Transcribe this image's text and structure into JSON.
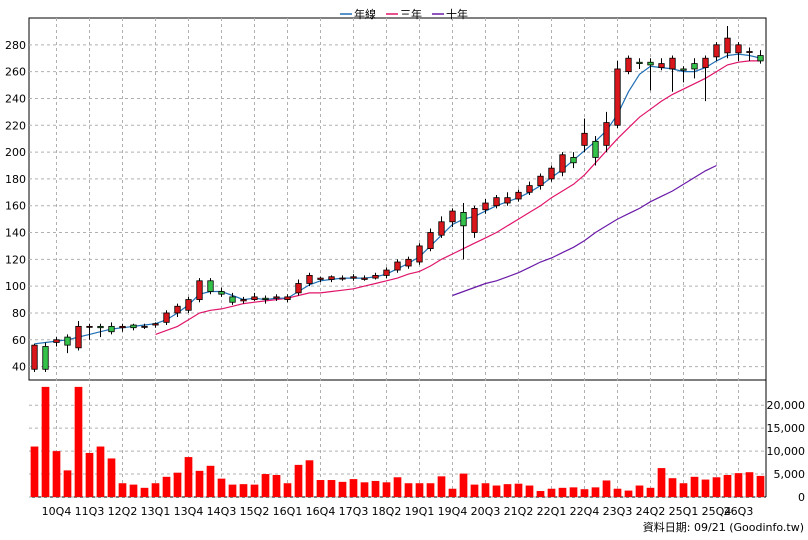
{
  "chart_data": {
    "type": "candlestick",
    "legend": [
      {
        "label": "年線",
        "color": "#1f6fb5"
      },
      {
        "label": "三年",
        "color": "#e0156b"
      },
      {
        "label": "十年",
        "color": "#6a1aa8"
      }
    ],
    "price_ticks": [
      "40",
      "60",
      "80",
      "100",
      "120",
      "140",
      "160",
      "180",
      "200",
      "220",
      "240",
      "260",
      "280"
    ],
    "price_ylim": [
      30,
      300
    ],
    "volume_ticks": [
      "0",
      "5,000",
      "10,000",
      "15,000",
      "20,000"
    ],
    "volume_ylim": [
      0,
      25500
    ],
    "x_labels": [
      {
        "i": 2,
        "label": "10Q4"
      },
      {
        "i": 5,
        "label": "11Q3"
      },
      {
        "i": 8,
        "label": "12Q2"
      },
      {
        "i": 11,
        "label": "13Q1"
      },
      {
        "i": 14,
        "label": "13Q4"
      },
      {
        "i": 17,
        "label": "14Q3"
      },
      {
        "i": 20,
        "label": "15Q2"
      },
      {
        "i": 23,
        "label": "16Q1"
      },
      {
        "i": 26,
        "label": "16Q4"
      },
      {
        "i": 29,
        "label": "17Q3"
      },
      {
        "i": 32,
        "label": "18Q2"
      },
      {
        "i": 35,
        "label": "19Q1"
      },
      {
        "i": 38,
        "label": "19Q4"
      },
      {
        "i": 41,
        "label": "20Q3"
      },
      {
        "i": 44,
        "label": "21Q2"
      },
      {
        "i": 47,
        "label": "22Q1"
      },
      {
        "i": 50,
        "label": "22Q4"
      },
      {
        "i": 53,
        "label": "23Q3"
      },
      {
        "i": 56,
        "label": "24Q2"
      },
      {
        "i": 59,
        "label": "25Q1"
      },
      {
        "i": 62,
        "label": "25Q4"
      },
      {
        "i": 64,
        "label": "26Q3"
      }
    ],
    "source_text": "資料日期: 09/21  (Goodinfo.tw)",
    "candles": [
      [
        38,
        56,
        36,
        57
      ],
      [
        55,
        38,
        36,
        58
      ],
      [
        58,
        60,
        55,
        62
      ],
      [
        62,
        56,
        50,
        64
      ],
      [
        54,
        70,
        52,
        74
      ],
      [
        70,
        70,
        60,
        72
      ],
      [
        70,
        69,
        62,
        72
      ],
      [
        70,
        66,
        64,
        73
      ],
      [
        69,
        70,
        66,
        72
      ],
      [
        71,
        69,
        67,
        72
      ],
      [
        70,
        70,
        68,
        72
      ],
      [
        71,
        72,
        69,
        73
      ],
      [
        73,
        80,
        71,
        82
      ],
      [
        80,
        85,
        77,
        87
      ],
      [
        82,
        90,
        80,
        92
      ],
      [
        90,
        104,
        88,
        106
      ],
      [
        104,
        96,
        94,
        106
      ],
      [
        96,
        94,
        92,
        99
      ],
      [
        92,
        88,
        86,
        95
      ],
      [
        89,
        90,
        87,
        92
      ],
      [
        90,
        92,
        89,
        95
      ],
      [
        91,
        90,
        87,
        93
      ],
      [
        91,
        92,
        89,
        94
      ],
      [
        90,
        92,
        88,
        94
      ],
      [
        95,
        102,
        93,
        105
      ],
      [
        102,
        108,
        100,
        110
      ],
      [
        105,
        106,
        103,
        107
      ],
      [
        105,
        107,
        103,
        108
      ],
      [
        106,
        106,
        104,
        108
      ],
      [
        106,
        107,
        104,
        109
      ],
      [
        105,
        106,
        104,
        108
      ],
      [
        106,
        108,
        105,
        110
      ],
      [
        108,
        112,
        106,
        114
      ],
      [
        112,
        118,
        110,
        120
      ],
      [
        115,
        120,
        113,
        122
      ],
      [
        118,
        130,
        116,
        132
      ],
      [
        128,
        140,
        126,
        143
      ],
      [
        138,
        148,
        136,
        152
      ],
      [
        148,
        156,
        144,
        158
      ],
      [
        155,
        145,
        120,
        162
      ],
      [
        140,
        158,
        136,
        160
      ],
      [
        157,
        162,
        154,
        165
      ],
      [
        160,
        166,
        158,
        168
      ],
      [
        162,
        166,
        160,
        170
      ],
      [
        165,
        170,
        163,
        172
      ],
      [
        170,
        175,
        168,
        178
      ],
      [
        175,
        182,
        172,
        184
      ],
      [
        180,
        188,
        178,
        190
      ],
      [
        185,
        198,
        182,
        200
      ],
      [
        196,
        192,
        188,
        200
      ],
      [
        205,
        214,
        200,
        225
      ],
      [
        208,
        196,
        190,
        212
      ],
      [
        205,
        222,
        200,
        230
      ],
      [
        220,
        262,
        218,
        268
      ],
      [
        260,
        270,
        258,
        272
      ],
      [
        267,
        266,
        262,
        270
      ],
      [
        267,
        265,
        246,
        270
      ],
      [
        263,
        266,
        261,
        270
      ],
      [
        262,
        270,
        245,
        272
      ],
      [
        262,
        261,
        252,
        264
      ],
      [
        266,
        262,
        255,
        270
      ],
      [
        263,
        270,
        238,
        272
      ],
      [
        271,
        280,
        268,
        282
      ],
      [
        274,
        285,
        270,
        294
      ],
      [
        274,
        280,
        268,
        282
      ],
      [
        275,
        275,
        268,
        278
      ],
      [
        272,
        268,
        266,
        276
      ]
    ],
    "volume": [
      11000,
      24000,
      10000,
      5800,
      24000,
      9600,
      11000,
      8400,
      3000,
      2700,
      2000,
      3000,
      4400,
      5300,
      8700,
      5700,
      6800,
      4000,
      2700,
      2800,
      2700,
      5000,
      4800,
      3000,
      7000,
      8000,
      3700,
      3700,
      3300,
      3900,
      3200,
      3500,
      3200,
      4300,
      3000,
      3000,
      3000,
      4500,
      1800,
      5100,
      2700,
      3000,
      2500,
      2800,
      2900,
      2500,
      1300,
      1800,
      2000,
      2100,
      1700,
      2100,
      3600,
      1800,
      1400,
      2500,
      2000,
      6300,
      4100,
      3000,
      4400,
      3800,
      4300,
      4800,
      5200,
      5400,
      4600
    ],
    "ma_year": [
      null,
      null,
      null,
      null,
      null,
      null,
      null,
      null,
      null,
      null,
      null,
      null,
      null,
      null,
      null,
      null,
      null,
      null,
      null,
      null,
      null,
      null,
      null,
      null,
      null,
      null,
      null,
      null,
      null,
      null,
      null,
      null,
      null,
      null,
      null,
      null,
      null,
      null,
      null,
      null,
      null,
      null,
      null,
      null,
      null,
      null,
      null,
      null,
      null,
      null,
      null,
      null,
      null,
      null,
      null,
      null,
      null,
      null,
      null,
      null,
      null,
      null,
      null,
      null,
      null,
      null,
      null
    ],
    "ma_year_pts": [
      [
        0,
        57
      ],
      [
        1,
        58
      ],
      [
        2,
        59
      ],
      [
        3,
        60
      ],
      [
        4,
        62
      ],
      [
        5,
        64
      ],
      [
        6,
        66
      ],
      [
        7,
        68
      ],
      [
        8,
        69
      ],
      [
        9,
        70
      ],
      [
        10,
        71
      ],
      [
        11,
        72
      ],
      [
        12,
        75
      ],
      [
        13,
        80
      ],
      [
        14,
        86
      ],
      [
        15,
        94
      ],
      [
        16,
        96
      ],
      [
        17,
        96
      ],
      [
        18,
        93
      ],
      [
        19,
        90
      ],
      [
        20,
        91
      ],
      [
        21,
        90
      ],
      [
        22,
        91
      ],
      [
        23,
        91
      ],
      [
        24,
        96
      ],
      [
        25,
        101
      ],
      [
        26,
        104
      ],
      [
        27,
        105
      ],
      [
        28,
        106
      ],
      [
        29,
        106
      ],
      [
        30,
        106
      ],
      [
        31,
        107
      ],
      [
        32,
        109
      ],
      [
        33,
        113
      ],
      [
        34,
        117
      ],
      [
        35,
        122
      ],
      [
        36,
        130
      ],
      [
        37,
        138
      ],
      [
        38,
        146
      ],
      [
        39,
        150
      ],
      [
        40,
        152
      ],
      [
        41,
        156
      ],
      [
        42,
        160
      ],
      [
        43,
        163
      ],
      [
        44,
        166
      ],
      [
        45,
        170
      ],
      [
        46,
        175
      ],
      [
        47,
        181
      ],
      [
        48,
        187
      ],
      [
        49,
        194
      ],
      [
        50,
        201
      ],
      [
        51,
        208
      ],
      [
        52,
        216
      ],
      [
        53,
        228
      ],
      [
        54,
        245
      ],
      [
        55,
        258
      ],
      [
        56,
        264
      ],
      [
        57,
        263
      ],
      [
        58,
        262
      ],
      [
        59,
        260
      ],
      [
        60,
        260
      ],
      [
        61,
        263
      ],
      [
        62,
        268
      ],
      [
        63,
        272
      ],
      [
        64,
        273
      ],
      [
        65,
        272
      ],
      [
        66,
        270
      ]
    ],
    "ma_3y_pts": [
      [
        11,
        64
      ],
      [
        12,
        67
      ],
      [
        13,
        70
      ],
      [
        14,
        75
      ],
      [
        15,
        80
      ],
      [
        16,
        82
      ],
      [
        17,
        83
      ],
      [
        18,
        85
      ],
      [
        19,
        87
      ],
      [
        20,
        88
      ],
      [
        21,
        89
      ],
      [
        22,
        90
      ],
      [
        23,
        91
      ],
      [
        24,
        93
      ],
      [
        25,
        95
      ],
      [
        26,
        95
      ],
      [
        27,
        96
      ],
      [
        28,
        97
      ],
      [
        29,
        98
      ],
      [
        30,
        100
      ],
      [
        31,
        102
      ],
      [
        32,
        104
      ],
      [
        33,
        106
      ],
      [
        34,
        109
      ],
      [
        35,
        111
      ],
      [
        36,
        115
      ],
      [
        37,
        120
      ],
      [
        38,
        124
      ],
      [
        39,
        128
      ],
      [
        40,
        132
      ],
      [
        41,
        136
      ],
      [
        42,
        140
      ],
      [
        43,
        145
      ],
      [
        44,
        150
      ],
      [
        45,
        155
      ],
      [
        46,
        160
      ],
      [
        47,
        166
      ],
      [
        48,
        171
      ],
      [
        49,
        176
      ],
      [
        50,
        183
      ],
      [
        51,
        192
      ],
      [
        52,
        201
      ],
      [
        53,
        210
      ],
      [
        54,
        218
      ],
      [
        55,
        226
      ],
      [
        56,
        232
      ],
      [
        57,
        238
      ],
      [
        58,
        243
      ],
      [
        59,
        247
      ],
      [
        60,
        251
      ],
      [
        61,
        255
      ],
      [
        62,
        260
      ],
      [
        63,
        265
      ],
      [
        64,
        267
      ],
      [
        65,
        268
      ],
      [
        66,
        268
      ]
    ],
    "ma_10y_pts": [
      [
        38,
        93
      ],
      [
        39,
        96
      ],
      [
        40,
        99
      ],
      [
        41,
        102
      ],
      [
        42,
        104
      ],
      [
        43,
        107
      ],
      [
        44,
        110
      ],
      [
        45,
        114
      ],
      [
        46,
        118
      ],
      [
        47,
        121
      ],
      [
        48,
        125
      ],
      [
        49,
        129
      ],
      [
        50,
        134
      ],
      [
        51,
        140
      ],
      [
        52,
        145
      ],
      [
        53,
        150
      ],
      [
        54,
        154
      ],
      [
        55,
        158
      ],
      [
        56,
        163
      ],
      [
        57,
        167
      ],
      [
        58,
        171
      ],
      [
        59,
        176
      ],
      [
        60,
        181
      ],
      [
        61,
        186
      ],
      [
        62,
        190
      ]
    ]
  }
}
